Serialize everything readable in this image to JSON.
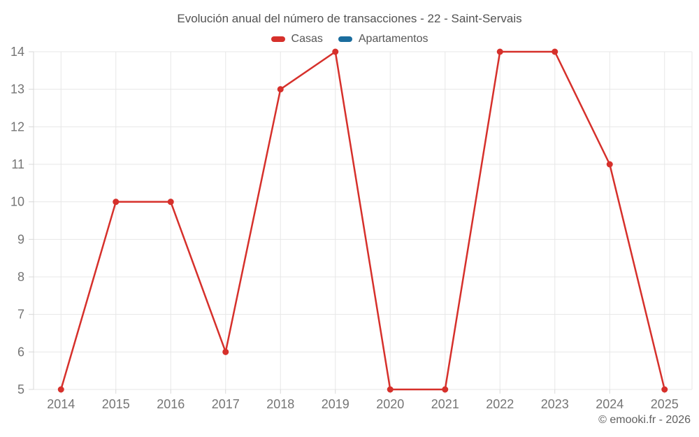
{
  "title": "Evolución anual del número de transacciones - 22 - Saint-Servais",
  "legend": [
    {
      "label": "Casas",
      "color": "#d6302b"
    },
    {
      "label": "Apartamentos",
      "color": "#1b6d9e"
    }
  ],
  "attribution": "© emooki.fr - 2026",
  "colors": {
    "grid": "#e7e7e7",
    "axis": "#d8d8d8",
    "tick_label": "#757575",
    "background": "#ffffff"
  },
  "chart_data": {
    "type": "line",
    "x": [
      2014,
      2015,
      2016,
      2017,
      2018,
      2019,
      2020,
      2021,
      2022,
      2023,
      2024,
      2025
    ],
    "series": [
      {
        "name": "Casas",
        "color": "#d6302b",
        "values": [
          5,
          10,
          10,
          6,
          13,
          14,
          5,
          5,
          14,
          14,
          11,
          5
        ]
      },
      {
        "name": "Apartamentos",
        "color": "#1b6d9e",
        "values": []
      }
    ],
    "title": "Evolución anual del número de transacciones - 22 - Saint-Servais",
    "xlabel": "",
    "ylabel": "",
    "ylim": [
      5,
      14
    ],
    "yticks": [
      5,
      6,
      7,
      8,
      9,
      10,
      11,
      12,
      13,
      14
    ],
    "grid": true,
    "legend_position": "top"
  }
}
